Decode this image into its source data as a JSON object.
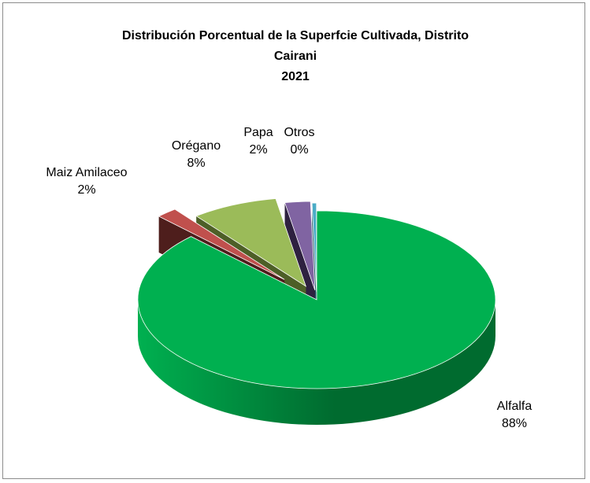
{
  "chart_data": {
    "type": "pie",
    "variant": "3d-exploded",
    "title_lines": [
      "Distribución Porcentual de la Superfcie Cultivada, Distrito",
      "Cairani",
      "2021"
    ],
    "start_slice": "Alfalfa",
    "slices": [
      {
        "key": "alfalfa",
        "label": "Alfalfa",
        "percent_label": "88%",
        "value": 87.6,
        "color": "#00b050",
        "side_color": "#006b2f"
      },
      {
        "key": "maiz",
        "label": "Maiz Amilaceo",
        "percent_label": "2%",
        "value": 1.9,
        "color": "#c0504d",
        "side_color": "#4e1e1c"
      },
      {
        "key": "oregano",
        "label": "Orégano",
        "percent_label": "8%",
        "value": 7.8,
        "color": "#9bbb59",
        "side_color": "#4d5f27"
      },
      {
        "key": "papa",
        "label": "Papa",
        "percent_label": "2%",
        "value": 2.3,
        "color": "#8064a2",
        "side_color": "#2e2140"
      },
      {
        "key": "otros",
        "label": "Otros",
        "percent_label": "0%",
        "value": 0.4,
        "color": "#4bacc6",
        "side_color": "#1d5563"
      }
    ],
    "legend": "none",
    "data_labels": "outside"
  }
}
